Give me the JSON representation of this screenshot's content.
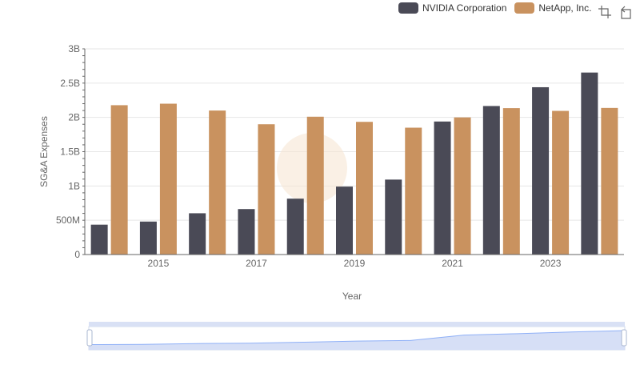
{
  "legend": {
    "items": [
      {
        "label": "NVIDIA Corporation",
        "color": "#4a4a56"
      },
      {
        "label": "NetApp, Inc.",
        "color": "#c9925f"
      }
    ]
  },
  "toolbox": {
    "icons": [
      "zoom-icon",
      "restore-icon"
    ]
  },
  "colors": {
    "nvidia": "#4a4a56",
    "netapp": "#c9925f",
    "grid": "#e6e6e6",
    "axis": "#666666",
    "slider_fill": "#d2dcf5",
    "slider_line": "#8fb0f7"
  },
  "chart_data": {
    "type": "bar",
    "xlabel": "Year",
    "ylabel": "SG&A Expenses",
    "ylim": [
      0,
      3000000000
    ],
    "y_ticks": [
      {
        "value": 0,
        "label": "0"
      },
      {
        "value": 500000000,
        "label": "500M"
      },
      {
        "value": 1000000000,
        "label": "1B"
      },
      {
        "value": 1500000000,
        "label": "1.5B"
      },
      {
        "value": 2000000000,
        "label": "2B"
      },
      {
        "value": 2500000000,
        "label": "2.5B"
      },
      {
        "value": 3000000000,
        "label": "3B"
      }
    ],
    "x_tick_labels": [
      "2015",
      "2017",
      "2019",
      "2021",
      "2023"
    ],
    "categories": [
      "2014",
      "2015",
      "2016",
      "2017",
      "2018",
      "2019",
      "2020",
      "2021",
      "2022",
      "2023",
      "2024"
    ],
    "series": [
      {
        "name": "NVIDIA Corporation",
        "values": [
          435700000,
          480800000,
          602000000,
          663000000,
          815000000,
          991000000,
          1093000000,
          1940000000,
          2166000000,
          2440000000,
          2654000000
        ]
      },
      {
        "name": "NetApp, Inc.",
        "values": [
          2178000000,
          2200000000,
          2100000000,
          1900000000,
          2010000000,
          1935000000,
          1850000000,
          2000000000,
          2135000000,
          2095000000,
          2138000000
        ]
      }
    ],
    "grid": true,
    "legend_position": "top-right",
    "datazoom_slider": true
  }
}
